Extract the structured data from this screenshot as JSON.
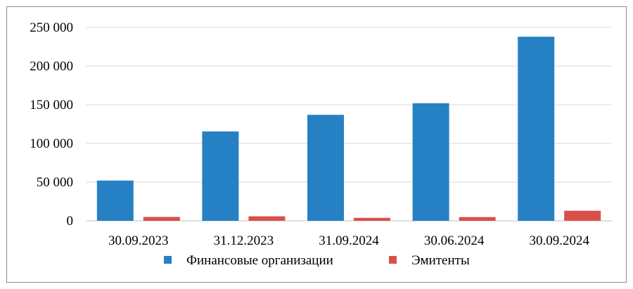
{
  "chart_data": {
    "type": "bar",
    "title": "",
    "xlabel": "",
    "ylabel": "",
    "categories": [
      "30.09.2023",
      "31.12.2023",
      "31.09.2024",
      "30.06.2024",
      "30.09.2024"
    ],
    "series": [
      {
        "name": "Финансовые организации",
        "color": "#2581c4",
        "values": [
          52000,
          115500,
          137000,
          152000,
          238000
        ]
      },
      {
        "name": "Эмитенты",
        "color": "#d9504a",
        "values": [
          5000,
          5800,
          3800,
          4800,
          13000
        ]
      }
    ],
    "ylim": [
      0,
      250000
    ],
    "yticks": [
      0,
      50000,
      100000,
      150000,
      200000,
      250000
    ],
    "ytick_labels": [
      "0",
      "50 000",
      "100 000",
      "150 000",
      "200 000",
      "250 000"
    ],
    "grid": true,
    "legend_position": "bottom"
  }
}
